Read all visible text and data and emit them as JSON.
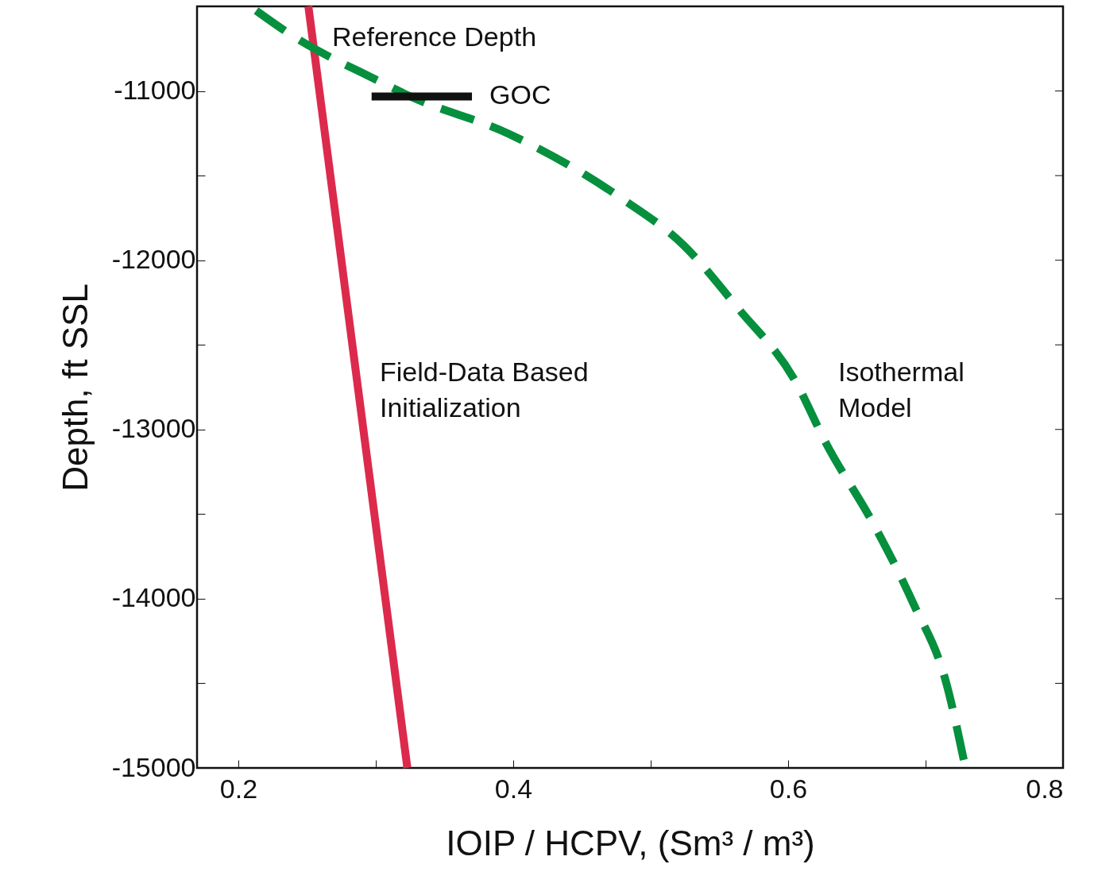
{
  "chart_data": {
    "type": "line",
    "xlabel": "IOIP / HCPV, (Sm³ / m³)",
    "ylabel": "Depth, ft SSL",
    "xlim": [
      0.17,
      0.8
    ],
    "ylim": [
      -15000,
      -10500
    ],
    "xticks": [
      0.2,
      {
        "value": 0.3,
        "label": null
      },
      0.4,
      {
        "value": 0.5,
        "label": null
      },
      0.6,
      {
        "value": 0.7,
        "label": null
      },
      0.8
    ],
    "yticks": [
      -15000,
      {
        "value": -14500,
        "label": null
      },
      -14000,
      {
        "value": -13500,
        "label": null
      },
      -13000,
      {
        "value": -12500,
        "label": null
      },
      -12000,
      {
        "value": -11500,
        "label": null
      },
      -11000
    ],
    "grid": false,
    "marker": "none",
    "series": [
      {
        "color": "#dc2a4c",
        "line_style": "solid",
        "x": [
          0.251,
          0.323
        ],
        "values": [
          -10500,
          -15000
        ]
      },
      {
        "color": "#06903e",
        "line_style": "dashed",
        "x": [
          0.213,
          0.238,
          0.304,
          0.324,
          0.397,
          0.478,
          0.524,
          0.564,
          0.605,
          0.628,
          0.662,
          0.691,
          0.715,
          0.729
        ],
        "values": [
          -10525,
          -10666,
          -10948,
          -11028,
          -11254,
          -11630,
          -11912,
          -12288,
          -12711,
          -13088,
          -13557,
          -14027,
          -14497,
          -15000
        ]
      },
      {
        "color": "#111111",
        "line_style": "solid",
        "x": [
          0.297,
          0.37
        ],
        "values": [
          -11033,
          -11033
        ]
      }
    ],
    "annotations": [
      "Reference Depth",
      "GOC",
      "Field-Data Based\nInitialization",
      "Isothermal\nModel"
    ]
  }
}
